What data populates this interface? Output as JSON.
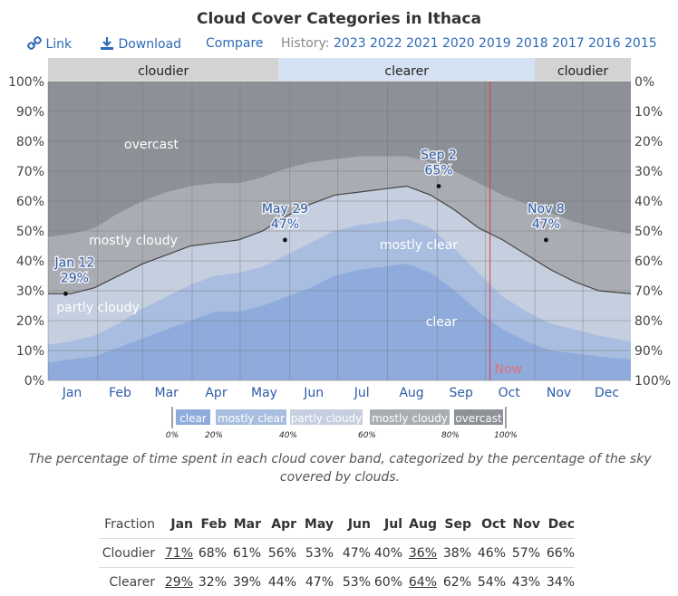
{
  "title": "Cloud Cover Categories in Ithaca",
  "toolbar": {
    "link_label": "Link",
    "download_label": "Download",
    "compare_label": "Compare",
    "history_label": "History:",
    "years": [
      "2023",
      "2022",
      "2021",
      "2020",
      "2019",
      "2018",
      "2017",
      "2016",
      "2015"
    ]
  },
  "colors": {
    "clear": "#8fabdc",
    "mostly_clear": "#a8bddf",
    "partly_cloudy": "#c5cfdf",
    "mostly_cloudy": "#a9acb2",
    "overcast": "#8d9096",
    "band_cloudier": "#d3d3d3",
    "band_clearer": "#d5e2f3",
    "now_line": "#e53a3a",
    "label_blue": "#2d5ba6"
  },
  "chart_data": {
    "type": "area",
    "title": "Cloud Cover Categories in Ithaca",
    "y_range": [
      0,
      100
    ],
    "left_ticks": [
      "0%",
      "10%",
      "20%",
      "30%",
      "40%",
      "50%",
      "60%",
      "70%",
      "80%",
      "90%",
      "100%"
    ],
    "right_ticks": [
      "100%",
      "90%",
      "80%",
      "70%",
      "60%",
      "50%",
      "40%",
      "30%",
      "20%",
      "10%",
      "0%"
    ],
    "months": [
      "Jan",
      "Feb",
      "Mar",
      "Apr",
      "May",
      "Jun",
      "Jul",
      "Aug",
      "Sep",
      "Oct",
      "Nov",
      "Dec"
    ],
    "x_days": [
      1,
      15,
      30,
      45,
      60,
      75,
      90,
      105,
      120,
      135,
      150,
      165,
      180,
      195,
      210,
      225,
      240,
      255,
      270,
      285,
      300,
      315,
      330,
      345,
      365
    ],
    "series": [
      {
        "name": "clear",
        "cumulative_top": [
          6,
          7,
          8,
          11,
          14,
          17,
          20,
          23,
          23,
          25,
          28,
          31,
          35,
          37,
          38,
          39,
          36,
          30,
          23,
          17,
          13,
          10,
          9,
          8,
          7
        ]
      },
      {
        "name": "mostly clear",
        "cumulative_top": [
          12,
          13,
          15,
          19,
          24,
          28,
          32,
          35,
          36,
          38,
          42,
          46,
          50,
          52,
          53,
          54,
          51,
          44,
          36,
          28,
          23,
          19,
          17,
          15,
          13
        ]
      },
      {
        "name": "partly cloudy",
        "cumulative_top": [
          29,
          29,
          31,
          35,
          39,
          42,
          45,
          46,
          47,
          50,
          55,
          59,
          62,
          63,
          64,
          65,
          62,
          57,
          51,
          47,
          42,
          37,
          33,
          30,
          29
        ]
      },
      {
        "name": "mostly cloudy",
        "cumulative_top": [
          48,
          49,
          51,
          56,
          60,
          63,
          65,
          66,
          66,
          68,
          71,
          73,
          74,
          75,
          75,
          75,
          73,
          70,
          66,
          62,
          59,
          56,
          53,
          51,
          49
        ]
      },
      {
        "name": "overcast",
        "cumulative_top": [
          100,
          100,
          100,
          100,
          100,
          100,
          100,
          100,
          100,
          100,
          100,
          100,
          100,
          100,
          100,
          100,
          100,
          100,
          100,
          100,
          100,
          100,
          100,
          100,
          100
        ]
      }
    ],
    "clearer_line": [
      29,
      29,
      31,
      35,
      39,
      42,
      45,
      46,
      47,
      50,
      55,
      59,
      62,
      63,
      64,
      65,
      62,
      57,
      51,
      47,
      42,
      37,
      33,
      30,
      29
    ],
    "area_labels": [
      "overcast",
      "mostly cloudy",
      "partly cloudy",
      "mostly clear",
      "clear"
    ],
    "annotations": [
      {
        "date": "Jan 12",
        "value": "29%",
        "day": 12,
        "y": 29
      },
      {
        "date": "May 29",
        "value": "47%",
        "day": 149,
        "y": 47
      },
      {
        "date": "Sep 2",
        "value": "65%",
        "day": 245,
        "y": 65
      },
      {
        "date": "Nov 8",
        "value": "47%",
        "day": 312,
        "y": 47
      }
    ],
    "bands": [
      {
        "label": "cloudier",
        "start_day": 1,
        "end_day": 145
      },
      {
        "label": "clearer",
        "start_day": 145,
        "end_day": 305
      },
      {
        "label": "cloudier",
        "start_day": 305,
        "end_day": 365
      }
    ],
    "now": {
      "label": "Now",
      "day": 277
    },
    "legend": {
      "items": [
        "clear",
        "mostly clear",
        "partly cloudy",
        "mostly cloudy",
        "overcast"
      ],
      "ticks": [
        "0%",
        "20%",
        "40%",
        "60%",
        "80%",
        "100%"
      ]
    }
  },
  "caption": "The percentage of time spent in each cloud cover band, categorized by the percentage of the sky covered by clouds.",
  "table": {
    "header_label": "Fraction",
    "months": [
      "Jan",
      "Feb",
      "Mar",
      "Apr",
      "May",
      "Jun",
      "Jul",
      "Aug",
      "Sep",
      "Oct",
      "Nov",
      "Dec"
    ],
    "rows": [
      {
        "label": "Cloudier",
        "values": [
          "71%",
          "68%",
          "61%",
          "56%",
          "53%",
          "47%",
          "40%",
          "36%",
          "38%",
          "46%",
          "57%",
          "66%"
        ],
        "underline_index": [
          0,
          7
        ]
      },
      {
        "label": "Clearer",
        "values": [
          "29%",
          "32%",
          "39%",
          "44%",
          "47%",
          "53%",
          "60%",
          "64%",
          "62%",
          "54%",
          "43%",
          "34%"
        ],
        "underline_index": [
          0,
          7
        ]
      }
    ]
  }
}
